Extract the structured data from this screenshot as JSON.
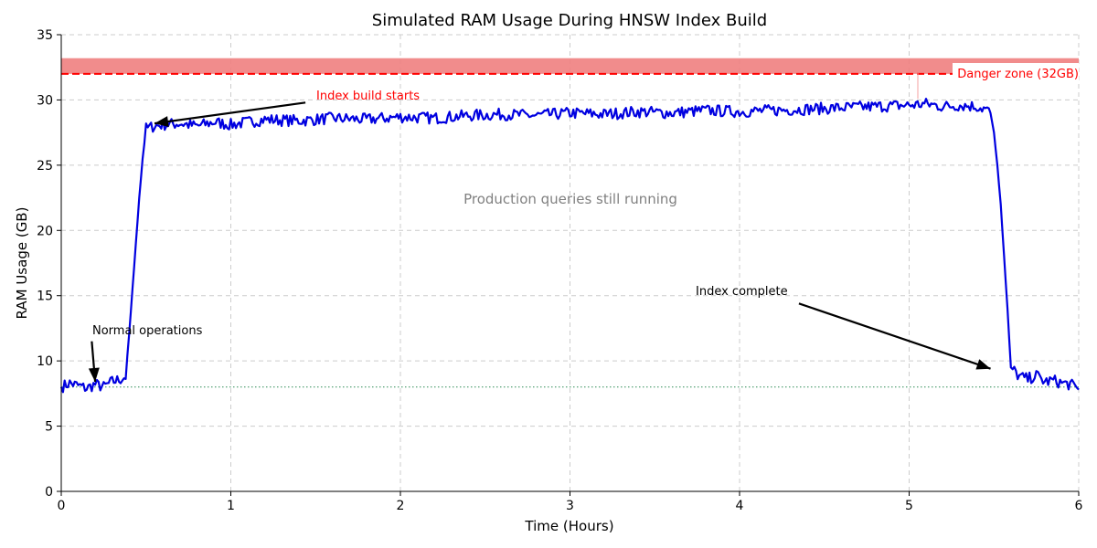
{
  "chart_data": {
    "type": "line",
    "title": "Simulated RAM Usage During HNSW Index Build",
    "xlabel": "Time (Hours)",
    "ylabel": "RAM Usage (GB)",
    "xlim": [
      0,
      6
    ],
    "ylim": [
      0,
      35
    ],
    "xticks": [
      0,
      1,
      2,
      3,
      4,
      5,
      6
    ],
    "yticks": [
      0,
      5,
      10,
      15,
      20,
      25,
      30,
      35
    ],
    "grid": true,
    "colors": {
      "series": "#0000e0",
      "danger": "#ff0000",
      "danger_band": "#f08080",
      "baseline": "#2e8b57",
      "annotation": "#000000",
      "note": "#808080"
    },
    "danger_threshold": 32,
    "danger_band": [
      32,
      33.2
    ],
    "baseline_level": 8,
    "series": [
      {
        "name": "RAM usage",
        "x": [
          0,
          0.05,
          0.1,
          0.15,
          0.2,
          0.25,
          0.3,
          0.35,
          0.38,
          0.4,
          0.42,
          0.44,
          0.46,
          0.48,
          0.5,
          0.55,
          0.6,
          0.7,
          0.8,
          0.9,
          1.0,
          1.2,
          1.4,
          1.6,
          1.8,
          2.0,
          2.2,
          2.4,
          2.6,
          2.8,
          3.0,
          3.2,
          3.4,
          3.6,
          3.8,
          4.0,
          4.2,
          4.4,
          4.6,
          4.8,
          5.0,
          5.1,
          5.2,
          5.3,
          5.4,
          5.45,
          5.48,
          5.5,
          5.52,
          5.54,
          5.56,
          5.58,
          5.6,
          5.65,
          5.7,
          5.75,
          5.8,
          5.85,
          5.9,
          5.95,
          6.0
        ],
        "values": [
          8.0,
          8.3,
          8.1,
          7.9,
          8.2,
          8.0,
          8.4,
          8.6,
          8.8,
          12.0,
          15.5,
          19.0,
          22.5,
          25.5,
          27.8,
          28.0,
          28.1,
          28.2,
          28.0,
          28.3,
          28.1,
          28.5,
          28.4,
          28.6,
          28.5,
          28.7,
          28.6,
          28.8,
          28.9,
          28.8,
          29.0,
          28.9,
          29.1,
          29.0,
          29.2,
          29.1,
          29.2,
          29.3,
          29.4,
          29.5,
          29.6,
          29.7,
          29.5,
          29.6,
          29.5,
          29.3,
          29.0,
          27.5,
          25.0,
          22.0,
          18.0,
          14.0,
          9.5,
          8.8,
          8.6,
          8.9,
          8.4,
          8.5,
          8.3,
          8.2,
          7.8
        ]
      }
    ],
    "annotations": {
      "danger": "Danger zone (32GB)",
      "build_start": "Index build starts",
      "normal": "Normal operations",
      "complete": "Index complete",
      "production": "Production queries still running"
    }
  }
}
